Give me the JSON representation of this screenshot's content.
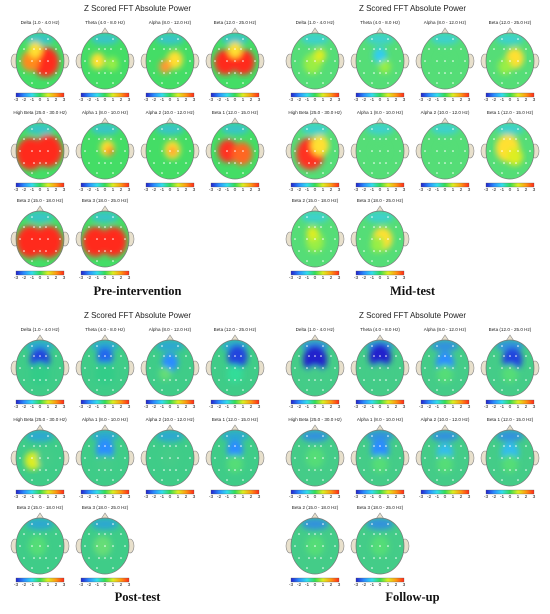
{
  "figure": {
    "panels": [
      {
        "key": "pre",
        "title": "Z Scored FFT Absolute Power",
        "phase": "Pre-intervention",
        "maps": [
          {
            "label": "Delta (1.0 - 4.0 Hz)",
            "blobs": [
              {
                "c": "#ff2a1a",
                "s": 1.2
              },
              {
                "c": "#ff9900",
                "s": 1
              },
              {
                "c": "#ffee33",
                "s": 0.8
              }
            ]
          },
          {
            "label": "Theta (4.0 - 8.0 Hz)",
            "blobs": [
              {
                "c": "#ffcc33",
                "s": 0.7
              },
              {
                "c": "#99ff66",
                "s": 0.8
              }
            ]
          },
          {
            "label": "Alpha (8.0 - 12.0 Hz)",
            "blobs": [
              {
                "c": "#ffdd22",
                "s": 0.9
              },
              {
                "c": "#ff9933",
                "s": 0.6
              }
            ]
          },
          {
            "label": "Beta (12.0 - 25.0 Hz)",
            "blobs": [
              {
                "c": "#ff2a1a",
                "s": 1.2
              },
              {
                "c": "#ff2a1a",
                "s": 1.1
              },
              {
                "c": "#ffcc22",
                "s": 0.9
              }
            ]
          }
        ]
      },
      {
        "key": "pre2",
        "maps": [
          {
            "label": "High Beta (25.0 - 30.0 Hz)",
            "blobs": [
              {
                "c": "#ff2a1a",
                "s": 1.5
              },
              {
                "c": "#ff2a1a",
                "s": 1.4
              }
            ]
          },
          {
            "label": "Alpha 1 (8.0 - 10.0 Hz)",
            "blobs": [
              {
                "c": "#ffee33",
                "s": 0.8
              },
              {
                "c": "#ff8822",
                "s": 0.6
              }
            ]
          },
          {
            "label": "Alpha 2 (10.0 - 12.0 Hz)",
            "blobs": [
              {
                "c": "#ffdd22",
                "s": 0.9
              },
              {
                "c": "#ff9933",
                "s": 0.5
              }
            ]
          },
          {
            "label": "Beta 1 (12.0 - 15.0 Hz)",
            "blobs": [
              {
                "c": "#ff3322",
                "s": 1.1
              },
              {
                "c": "#ff6622",
                "s": 1
              }
            ]
          }
        ]
      },
      {
        "key": "pre3",
        "maps": [
          {
            "label": "Beta 2 (15.0 - 18.0 Hz)",
            "blobs": [
              {
                "c": "#ff2a1a",
                "s": 1.3
              },
              {
                "c": "#ff2a1a",
                "s": 1.3
              }
            ]
          },
          {
            "label": "Beta 3 (18.0 - 25.0 Hz)",
            "blobs": [
              {
                "c": "#ff2a1a",
                "s": 1.3
              },
              {
                "c": "#ff2a1a",
                "s": 1.2
              }
            ]
          }
        ]
      }
    ],
    "colorbar_ticks": [
      "-3",
      "-2",
      "-1",
      "0",
      "1",
      "2",
      "3"
    ],
    "titles": {
      "top_left": "Z Scored FFT Absolute Power",
      "top_right": "Z Scored FFT Absolute Power",
      "bottom_left": "Z Scored FFT Absolute Power",
      "bottom_right": "Z Scored FFT Absolute Power"
    },
    "phases": {
      "top_left": "Pre-intervention",
      "top_right": "Mid-test",
      "bottom_left": "Post-test",
      "bottom_right": "Follow-up"
    },
    "labels": {
      "top_left": [
        "Delta (1.0 - 4.0 Hz)",
        "Theta (4.0 - 8.0 Hz)",
        "Alpha (8.0 - 12.0 Hz)",
        "Beta (12.0 - 25.0 Hz)",
        "High Beta (25.0 - 30.0 Hz)",
        "Alpha 1 (8.0 - 10.0 Hz)",
        "Alpha 2 (10.0 - 12.0 Hz)",
        "Beta 1 (12.0 - 15.0 Hz)",
        "Beta 2 (15.0 - 18.0 Hz)",
        "Beta 3 (18.0 - 25.0 Hz)"
      ],
      "top_right": [
        "Delta (1.0 - 4.0 Hz)",
        "Theta (4.0 - 8.0 Hz)",
        "Alpha (8.0 - 12.0 Hz)",
        "Beta (12.0 - 25.0 Hz)",
        "High Beta (25.0 - 30.0 Hz)",
        "Alpha 1 (8.0 - 10.0 Hz)",
        "Alpha 2 (10.0 - 12.0 Hz)",
        "Beta 1 (12.0 - 15.0 Hz)",
        "Beta 2 (15.0 - 18.0 Hz)",
        "Beta 3 (18.0 - 25.0 Hz)"
      ],
      "bottom_left": [
        "Delta (1.0 - 4.0 Hz)",
        "Theta (4.0 - 8.0 Hz)",
        "Alpha (8.0 - 12.0 Hz)",
        "Beta (12.0 - 25.0 Hz)",
        "High Beta (25.0 - 30.0 Hz)",
        "Alpha 1 (8.0 - 10.0 Hz)",
        "Alpha 2 (10.0 - 12.0 Hz)",
        "Beta 1 (12.0 - 15.0 Hz)",
        "Beta 2 (15.0 - 18.0 Hz)",
        "Beta 3 (18.0 - 25.0 Hz)"
      ],
      "bottom_right": [
        "Delta (1.0 - 4.0 Hz)",
        "Theta (4.0 - 8.0 Hz)",
        "Alpha (8.0 - 12.0 Hz)",
        "Beta (12.0 - 25.0 Hz)",
        "High Beta (25.0 - 30.0 Hz)",
        "Alpha 1 (8.0 - 10.0 Hz)",
        "Alpha 2 (10.0 - 12.0 Hz)",
        "Beta 1 (12.0 - 15.0 Hz)",
        "Beta 2 (15.0 - 18.0 Hz)",
        "Beta 3 (18.0 - 25.0 Hz)"
      ]
    },
    "colors": {
      "background": "#ffffff",
      "scale": [
        "#2222cc",
        "#2a8cff",
        "#33ddee",
        "#33dd55",
        "#ddee22",
        "#ff9911",
        "#ff2a1a"
      ]
    }
  }
}
